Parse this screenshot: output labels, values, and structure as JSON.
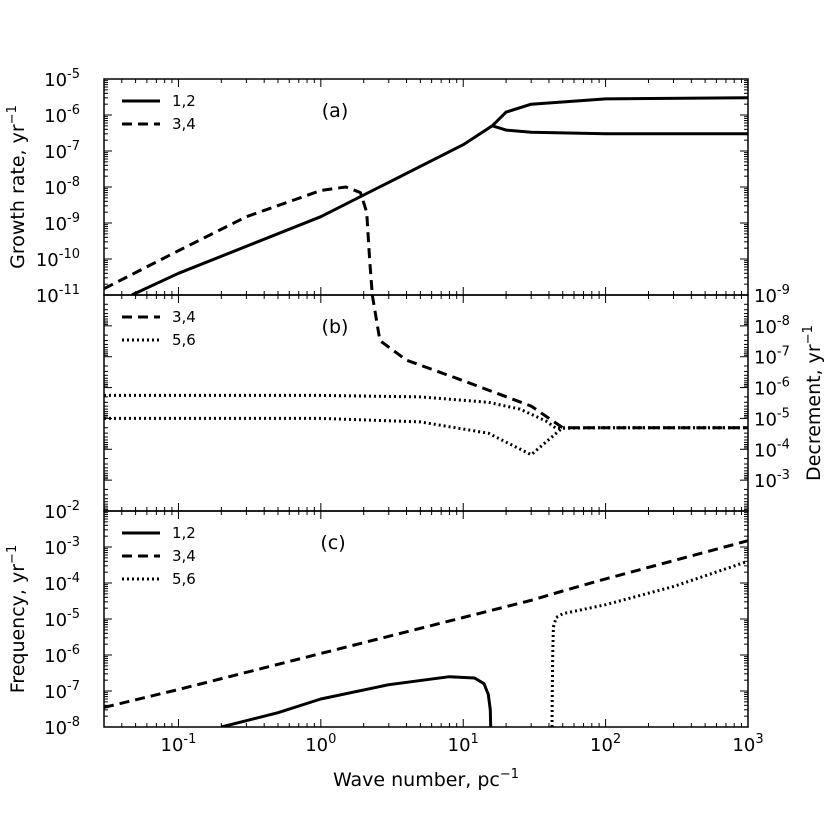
{
  "x_axis": {
    "label": "Wave number, pc",
    "label_sup": "−1",
    "scale": "log",
    "xlim": [
      0.03,
      1000
    ],
    "ticks": [
      {
        "base": "10",
        "exp": "-1",
        "value": 0.1
      },
      {
        "base": "10",
        "exp": "0",
        "value": 1
      },
      {
        "base": "10",
        "exp": "1",
        "value": 10
      },
      {
        "base": "10",
        "exp": "2",
        "value": 100
      },
      {
        "base": "10",
        "exp": "3",
        "value": 1000
      }
    ]
  },
  "chart_data": [
    {
      "type": "line",
      "panel_label": "(a)",
      "ylabel": "Growth rate, yr",
      "ylabel_sup": "−1",
      "y_scale": "log",
      "ylim": [
        1e-11,
        1e-05
      ],
      "y_ticks": [
        {
          "base": "10",
          "exp": "-11",
          "value": 1e-11
        },
        {
          "base": "10",
          "exp": "-10",
          "value": 1e-10
        },
        {
          "base": "10",
          "exp": "-9",
          "value": 1e-09
        },
        {
          "base": "10",
          "exp": "-8",
          "value": 1e-08
        },
        {
          "base": "10",
          "exp": "-7",
          "value": 1e-07
        },
        {
          "base": "10",
          "exp": "-6",
          "value": 1e-06
        },
        {
          "base": "10",
          "exp": "-5",
          "value": 1e-05
        }
      ],
      "legend": {
        "position": "top-left",
        "entries": [
          {
            "name": "1,2",
            "style": "solid"
          },
          {
            "name": "3,4",
            "style": "dashed"
          }
        ]
      },
      "series": [
        {
          "name": "1,2",
          "style": "solid",
          "x": [
            0.047,
            0.1,
            1,
            10,
            16
          ],
          "y": [
            1e-11,
            4e-11,
            1.5e-09,
            1.5e-07,
            5e-07
          ]
        },
        {
          "name": "1,2",
          "style": "solid",
          "x": [
            16,
            20,
            30,
            100,
            1000
          ],
          "y": [
            5e-07,
            1.2e-06,
            2e-06,
            2.8e-06,
            3e-06
          ]
        },
        {
          "name": "1,2",
          "style": "solid",
          "x": [
            16,
            20,
            30,
            100,
            1000
          ],
          "y": [
            5e-07,
            3.8e-07,
            3.3e-07,
            3e-07,
            3e-07
          ]
        },
        {
          "name": "3,4",
          "style": "dashed",
          "x": [
            0.03,
            0.1,
            0.3,
            1,
            1.5,
            1.9,
            2.1,
            2.2,
            2.3
          ],
          "y": [
            1.5e-11,
            1.7e-10,
            1.5e-09,
            8e-09,
            1e-08,
            7e-09,
            2e-09,
            1e-10,
            1e-11
          ]
        }
      ]
    },
    {
      "type": "line",
      "panel_label": "(b)",
      "ylabel": "Decrement, yr",
      "ylabel_sup": "−1",
      "y_scale": "log",
      "y_inverted": true,
      "ylim": [
        1e-09,
        0.01
      ],
      "y_ticks": [
        {
          "base": "10",
          "exp": "-9",
          "value": 1e-09
        },
        {
          "base": "10",
          "exp": "-8",
          "value": 1e-08
        },
        {
          "base": "10",
          "exp": "-7",
          "value": 1e-07
        },
        {
          "base": "10",
          "exp": "-6",
          "value": 1e-06
        },
        {
          "base": "10",
          "exp": "-5",
          "value": 1e-05
        },
        {
          "base": "10",
          "exp": "-4",
          "value": 0.0001
        },
        {
          "base": "10",
          "exp": "-3",
          "value": 0.001
        }
      ],
      "y_tick_side": "right",
      "left_end_label": {
        "base": "10",
        "exp": "-2"
      },
      "legend": {
        "position": "top-left",
        "entries": [
          {
            "name": "3,4",
            "style": "dashed"
          },
          {
            "name": "5,6",
            "style": "dotted"
          }
        ]
      },
      "series": [
        {
          "name": "3,4",
          "style": "dashed",
          "x": [
            2.3,
            2.6,
            4,
            10,
            30,
            50,
            100,
            1000
          ],
          "y": [
            1e-09,
            3e-08,
            1.3e-07,
            6e-07,
            4e-06,
            2e-05,
            2e-05,
            2e-05
          ]
        },
        {
          "name": "5,6",
          "style": "dotted",
          "x": [
            0.03,
            0.1,
            1,
            5,
            15,
            30,
            50,
            100,
            1000
          ],
          "y": [
            1e-05,
            1e-05,
            1e-05,
            1.3e-05,
            3e-05,
            0.00015,
            2e-05,
            2e-05,
            2e-05
          ]
        },
        {
          "name": "5,6",
          "style": "dotted",
          "x": [
            0.03,
            1,
            5,
            15,
            25,
            38,
            45,
            100,
            1000
          ],
          "y": [
            1.8e-06,
            1.8e-06,
            2e-06,
            3e-06,
            5e-06,
            1.2e-05,
            2.1e-05,
            2e-05,
            2e-05
          ]
        }
      ]
    },
    {
      "type": "line",
      "panel_label": "(c)",
      "ylabel": "Frequency, yr",
      "ylabel_sup": "−1",
      "y_scale": "log",
      "ylim": [
        1e-08,
        0.01
      ],
      "y_ticks": [
        {
          "base": "10",
          "exp": "-8",
          "value": 1e-08
        },
        {
          "base": "10",
          "exp": "-7",
          "value": 1e-07
        },
        {
          "base": "10",
          "exp": "-6",
          "value": 1e-06
        },
        {
          "base": "10",
          "exp": "-5",
          "value": 1e-05
        },
        {
          "base": "10",
          "exp": "-4",
          "value": 0.0001
        },
        {
          "base": "10",
          "exp": "-3",
          "value": 0.001
        }
      ],
      "legend": {
        "position": "top-left",
        "entries": [
          {
            "name": "1,2",
            "style": "solid"
          },
          {
            "name": "3,4",
            "style": "dashed"
          },
          {
            "name": "5,6",
            "style": "dotted"
          }
        ]
      },
      "series": [
        {
          "name": "1,2",
          "style": "solid",
          "x": [
            0.2,
            0.5,
            1,
            3,
            8,
            12,
            14,
            15,
            15.5,
            15.6
          ],
          "y": [
            1e-08,
            2.5e-08,
            6e-08,
            1.5e-07,
            2.5e-07,
            2.3e-07,
            1.6e-07,
            8e-08,
            3e-08,
            1e-08
          ]
        },
        {
          "name": "3,4",
          "style": "dashed",
          "x": [
            0.03,
            0.1,
            1,
            10,
            30,
            50,
            100,
            1000
          ],
          "y": [
            3.5e-08,
            1.1e-07,
            1.1e-06,
            1.1e-05,
            3.3e-05,
            6e-05,
            0.00013,
            0.0015
          ]
        },
        {
          "name": "5,6",
          "style": "dotted",
          "x": [
            42,
            42.2,
            42.5,
            43,
            45,
            50,
            100,
            300,
            1000
          ],
          "y": [
            1e-08,
            1e-07,
            1e-06,
            6e-06,
            1.1e-05,
            1.4e-05,
            2.5e-05,
            8e-05,
            0.0004
          ]
        }
      ]
    }
  ]
}
